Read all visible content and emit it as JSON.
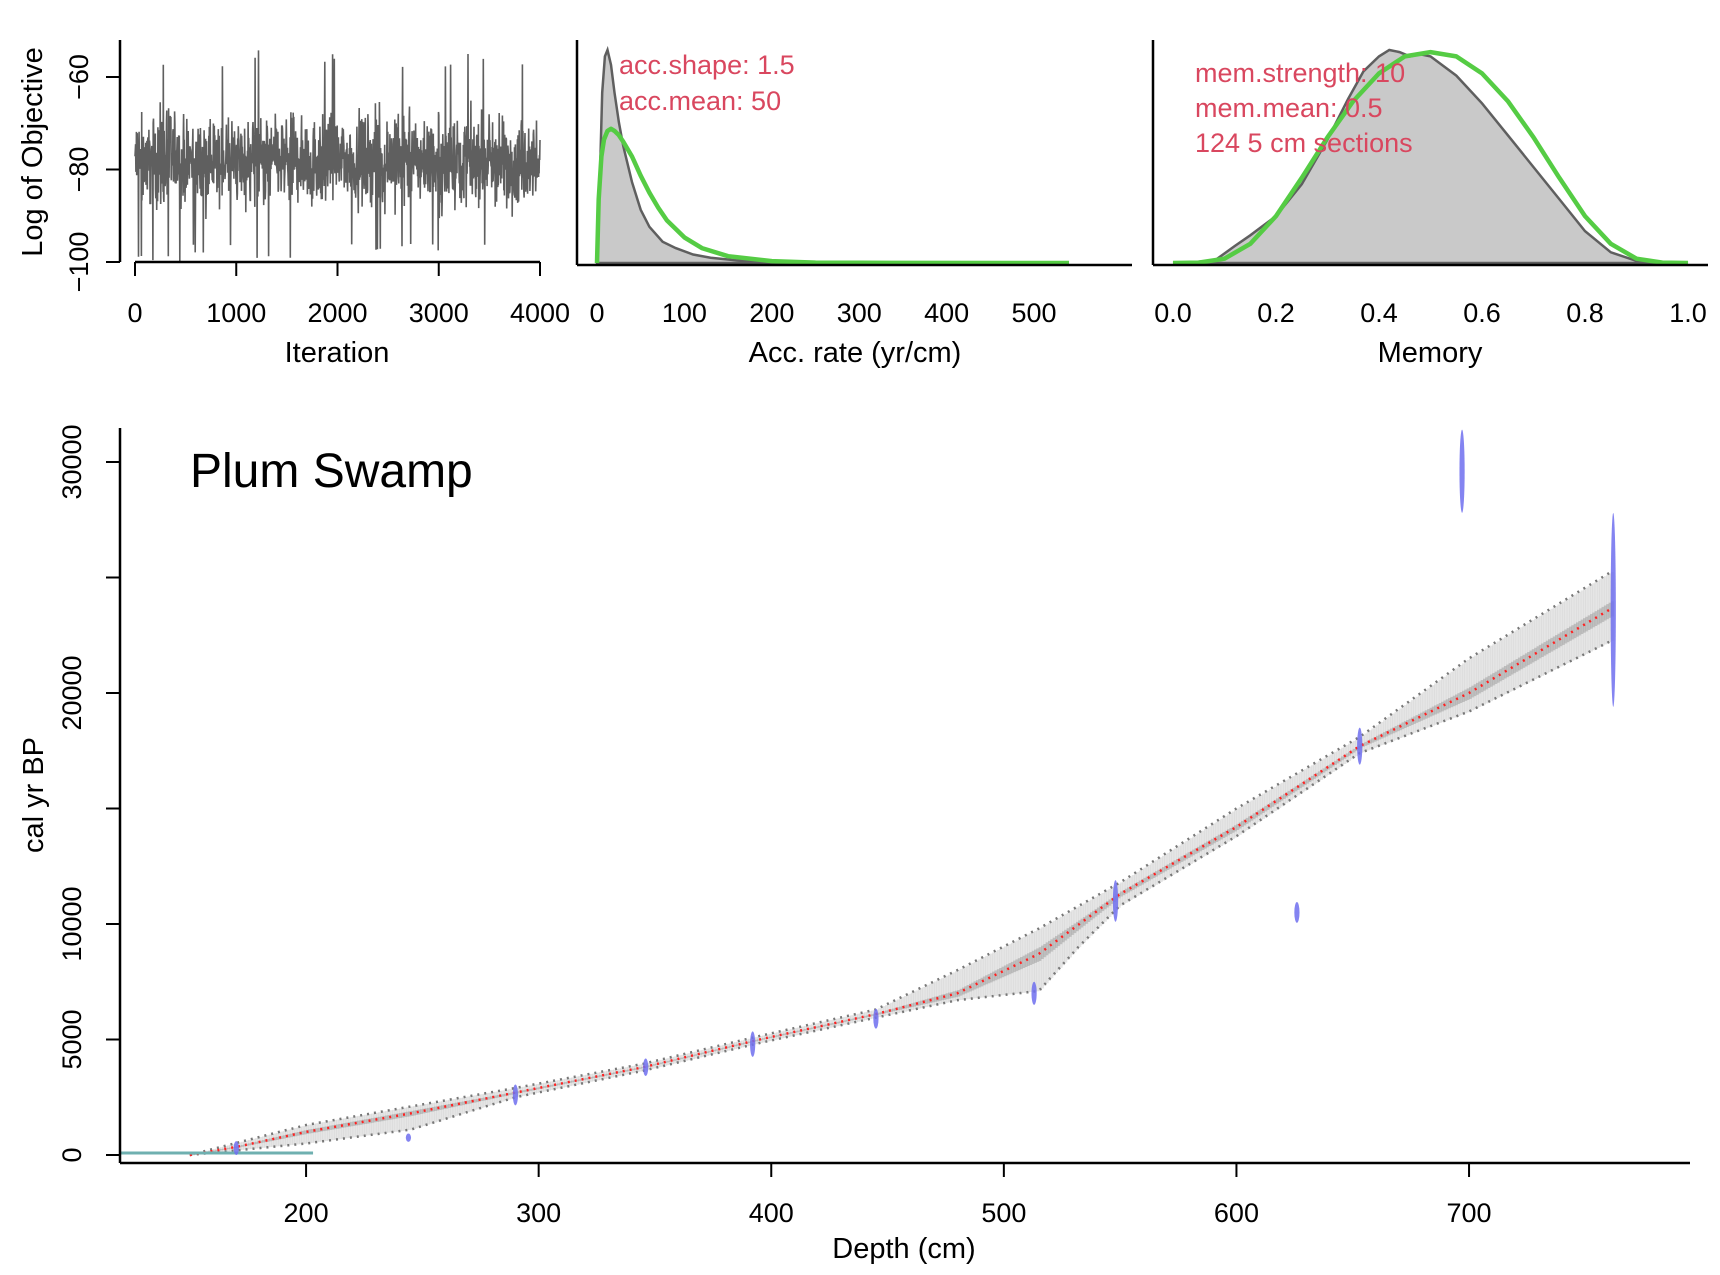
{
  "colors": {
    "trace": "#5f5f5f",
    "posterior_fill": "#c9c9c9",
    "posterior_line": "#5f5f5f",
    "prior_line": "#55cc44",
    "annotation": "#d9475f",
    "dates": "#6f6fee",
    "median": "#ff2020",
    "interval": "#777777",
    "hiatus": "#6fb0b0"
  },
  "chart_data": [
    {
      "type": "line",
      "ylabel": "Log of Objective",
      "xlabel": "Iteration",
      "xlim": [
        0,
        4000
      ],
      "ylim": [
        -100,
        -52
      ],
      "xticks": [
        "0",
        "1000",
        "2000",
        "3000",
        "4000"
      ],
      "yticks": [
        "−100",
        "−80",
        "−60"
      ],
      "trace_summary": {
        "iterations": 4000,
        "typical_min": -92,
        "typical_max": -64,
        "extreme_min": -100,
        "extreme_max": -54
      }
    },
    {
      "type": "area",
      "xlabel": "Acc. rate (yr/cm)",
      "xlim": [
        0,
        540
      ],
      "xticks": [
        "0",
        "100",
        "200",
        "300",
        "400",
        "500"
      ],
      "annotations": [
        "acc.shape:  1.5",
        "acc.mean:  50"
      ],
      "series": [
        {
          "kind": "posterior",
          "x": [
            0,
            3,
            6,
            9,
            12,
            16,
            20,
            25,
            30,
            40,
            50,
            60,
            75,
            90,
            110,
            130,
            160,
            200,
            250,
            300,
            540
          ],
          "y": [
            0,
            0.35,
            0.8,
            0.97,
            1.0,
            0.93,
            0.8,
            0.66,
            0.55,
            0.38,
            0.25,
            0.17,
            0.1,
            0.07,
            0.04,
            0.025,
            0.012,
            0.005,
            0.002,
            0.001,
            0
          ]
        },
        {
          "kind": "prior",
          "x": [
            0,
            2,
            5,
            8,
            12,
            16,
            20,
            25,
            30,
            40,
            50,
            60,
            70,
            80,
            100,
            120,
            150,
            200,
            250,
            300,
            540
          ],
          "y": [
            0,
            0.3,
            0.5,
            0.58,
            0.62,
            0.63,
            0.62,
            0.6,
            0.57,
            0.5,
            0.41,
            0.33,
            0.26,
            0.2,
            0.12,
            0.07,
            0.032,
            0.009,
            0.002,
            0.001,
            0
          ]
        }
      ]
    },
    {
      "type": "area",
      "xlabel": "Memory",
      "xlim": [
        0,
        1
      ],
      "xticks": [
        "0.0",
        "0.2",
        "0.4",
        "0.6",
        "0.8",
        "1.0"
      ],
      "annotations": [
        "mem.strength: 10",
        "mem.mean: 0.5",
        "124 5 cm sections"
      ],
      "series": [
        {
          "kind": "posterior",
          "x": [
            0.0,
            0.08,
            0.12,
            0.15,
            0.2,
            0.25,
            0.3,
            0.34,
            0.37,
            0.4,
            0.42,
            0.44,
            0.46,
            0.48,
            0.5,
            0.55,
            0.6,
            0.65,
            0.7,
            0.75,
            0.8,
            0.85,
            0.9,
            1.0
          ],
          "y": [
            0,
            0.01,
            0.08,
            0.13,
            0.22,
            0.37,
            0.58,
            0.77,
            0.9,
            0.97,
            1.0,
            0.99,
            0.97,
            0.98,
            0.97,
            0.88,
            0.75,
            0.6,
            0.45,
            0.3,
            0.15,
            0.05,
            0.01,
            0
          ]
        },
        {
          "kind": "prior",
          "x": [
            0.0,
            0.05,
            0.1,
            0.15,
            0.2,
            0.25,
            0.3,
            0.35,
            0.4,
            0.45,
            0.5,
            0.55,
            0.6,
            0.65,
            0.7,
            0.75,
            0.8,
            0.85,
            0.9,
            0.95,
            1.0
          ],
          "y": [
            0,
            0.002,
            0.02,
            0.09,
            0.22,
            0.4,
            0.59,
            0.76,
            0.89,
            0.97,
            0.99,
            0.97,
            0.89,
            0.76,
            0.59,
            0.4,
            0.22,
            0.09,
            0.02,
            0.002,
            0
          ]
        }
      ]
    },
    {
      "type": "line",
      "title": "Plum Swamp",
      "xlabel": "Depth (cm)",
      "ylabel": "cal yr BP",
      "xlim": [
        120,
        795
      ],
      "ylim": [
        0,
        31500
      ],
      "xticks": [
        "200",
        "300",
        "400",
        "500",
        "600",
        "700"
      ],
      "yticks": [
        "0",
        "5000",
        "10000",
        "20000",
        "30000"
      ],
      "median": {
        "x": [
          150,
          170,
          200,
          245,
          290,
          345,
          395,
          445,
          480,
          515,
          550,
          600,
          653,
          700,
          762
        ],
        "y": [
          0,
          350,
          1000,
          1800,
          2700,
          3800,
          5000,
          6100,
          7000,
          8700,
          11300,
          14200,
          17700,
          20000,
          23700
        ]
      },
      "upper": {
        "x": [
          150,
          200,
          245,
          290,
          345,
          395,
          445,
          480,
          515,
          550,
          600,
          653,
          700,
          762
        ],
        "y": [
          0,
          1300,
          2100,
          2900,
          3950,
          5150,
          6300,
          8000,
          9800,
          11800,
          15000,
          18100,
          21500,
          25300
        ]
      },
      "lower": {
        "x": [
          150,
          200,
          245,
          290,
          345,
          395,
          445,
          480,
          515,
          532,
          550,
          600,
          653,
          700,
          762
        ],
        "y": [
          0,
          500,
          1100,
          2500,
          3650,
          4850,
          5950,
          6700,
          7100,
          9000,
          10800,
          13800,
          17400,
          19200,
          22300
        ]
      },
      "dates": [
        {
          "depth": 170,
          "age": 300,
          "error": 300
        },
        {
          "depth": 244,
          "age": 750,
          "error": 180
        },
        {
          "depth": 290,
          "age": 2600,
          "error": 450
        },
        {
          "depth": 346,
          "age": 3800,
          "error": 380
        },
        {
          "depth": 392,
          "age": 4800,
          "error": 550
        },
        {
          "depth": 445,
          "age": 5900,
          "error": 430
        },
        {
          "depth": 513,
          "age": 7000,
          "error": 500
        },
        {
          "depth": 548,
          "age": 11000,
          "error": 900
        },
        {
          "depth": 626,
          "age": 10500,
          "error": 450
        },
        {
          "depth": 653,
          "age": 17700,
          "error": 800
        },
        {
          "depth": 697,
          "age": 29600,
          "error": 1800
        },
        {
          "depth": 762,
          "age": 23600,
          "error": 4200
        }
      ],
      "hiatus": {
        "x": [
          120,
          203
        ],
        "y": 0
      }
    }
  ]
}
